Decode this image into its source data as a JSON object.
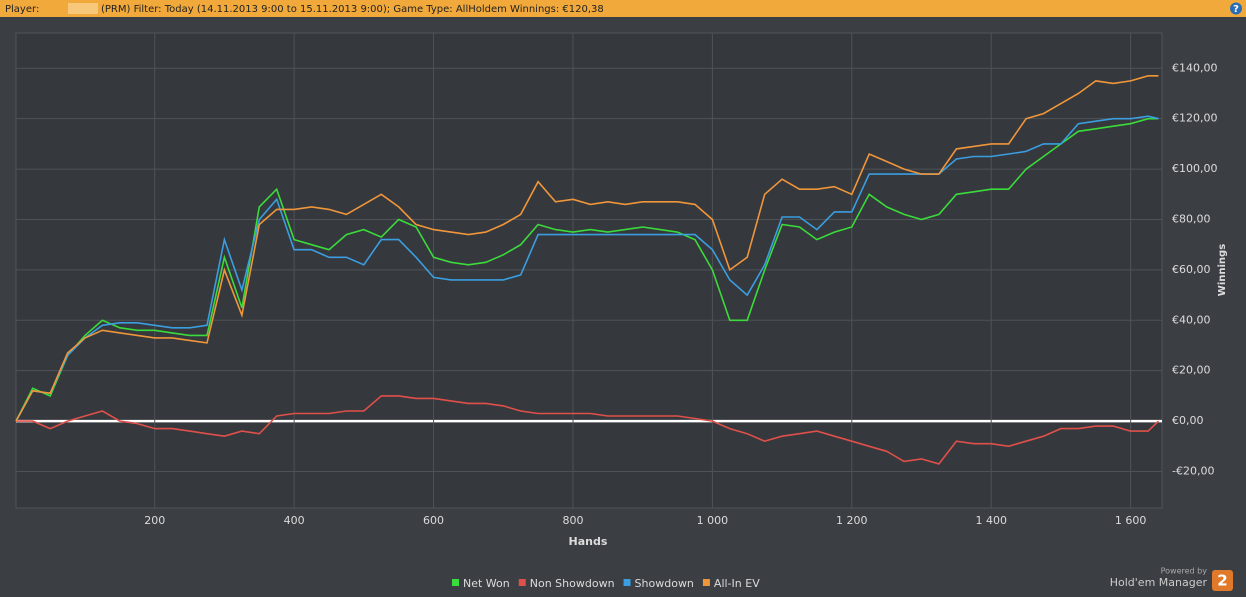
{
  "header": {
    "player_label": "Player:",
    "filter": "(PRM) Filter: Today (14.11.2013 9:00 to 15.11.2013 9:00); Game Type: AllHoldem Winnings: €120,38",
    "help": "?"
  },
  "chart_data": {
    "type": "line",
    "x_label": "Hands",
    "y_label": "Winnings",
    "x": [
      1,
      25,
      50,
      75,
      100,
      125,
      150,
      175,
      200,
      225,
      250,
      275,
      300,
      325,
      350,
      375,
      400,
      425,
      450,
      475,
      500,
      525,
      550,
      575,
      600,
      625,
      650,
      675,
      700,
      725,
      750,
      775,
      800,
      825,
      850,
      875,
      900,
      925,
      950,
      975,
      1000,
      1025,
      1050,
      1075,
      1100,
      1125,
      1150,
      1175,
      1200,
      1225,
      1250,
      1275,
      1300,
      1325,
      1350,
      1375,
      1400,
      1425,
      1450,
      1475,
      1500,
      1525,
      1550,
      1575,
      1600,
      1625,
      1640
    ],
    "series": [
      {
        "name": "Net Won",
        "color": "#3adb3a",
        "values": [
          0,
          13,
          10,
          26,
          34,
          40,
          37,
          36,
          36,
          35,
          34,
          34,
          65,
          45,
          85,
          92,
          72,
          70,
          68,
          74,
          76,
          73,
          80,
          77,
          65,
          63,
          62,
          63,
          66,
          70,
          78,
          76,
          75,
          76,
          75,
          76,
          77,
          76,
          75,
          72,
          60,
          40,
          40,
          60,
          78,
          77,
          72,
          75,
          77,
          90,
          85,
          82,
          80,
          82,
          90,
          91,
          92,
          92,
          100,
          105,
          110,
          115,
          116,
          117,
          118,
          120,
          120
        ]
      },
      {
        "name": "Non Showdown",
        "color": "#e0504a",
        "values": [
          0,
          0,
          -3,
          0,
          2,
          4,
          0,
          -1,
          -3,
          -3,
          -4,
          -5,
          -6,
          -4,
          -5,
          2,
          3,
          3,
          3,
          4,
          4,
          10,
          10,
          9,
          9,
          8,
          7,
          7,
          6,
          4,
          3,
          3,
          3,
          3,
          2,
          2,
          2,
          2,
          2,
          1,
          0,
          -3,
          -5,
          -8,
          -6,
          -5,
          -4,
          -6,
          -8,
          -10,
          -12,
          -16,
          -15,
          -17,
          -8,
          -9,
          -9,
          -10,
          -8,
          -6,
          -3,
          -3,
          -2,
          -2,
          -4,
          -4,
          0
        ]
      },
      {
        "name": "Showdown",
        "color": "#3a9ee0",
        "values": [
          0,
          12,
          11,
          26,
          33,
          38,
          39,
          39,
          38,
          37,
          37,
          38,
          72,
          52,
          80,
          88,
          68,
          68,
          65,
          65,
          62,
          72,
          72,
          65,
          57,
          56,
          56,
          56,
          56,
          58,
          74,
          74,
          74,
          74,
          74,
          74,
          74,
          74,
          74,
          74,
          68,
          56,
          50,
          62,
          81,
          81,
          76,
          83,
          83,
          98,
          98,
          98,
          98,
          98,
          104,
          105,
          105,
          106,
          107,
          110,
          110,
          118,
          119,
          120,
          120,
          121,
          120
        ]
      },
      {
        "name": "All-In EV",
        "color": "#f0963a",
        "values": [
          0,
          12,
          11,
          27,
          33,
          36,
          35,
          34,
          33,
          33,
          32,
          31,
          60,
          42,
          78,
          84,
          84,
          85,
          84,
          82,
          86,
          90,
          85,
          78,
          76,
          75,
          74,
          75,
          78,
          82,
          95,
          87,
          88,
          86,
          87,
          86,
          87,
          87,
          87,
          86,
          80,
          60,
          65,
          90,
          96,
          92,
          92,
          93,
          90,
          106,
          103,
          100,
          98,
          98,
          108,
          109,
          110,
          110,
          120,
          122,
          126,
          130,
          135,
          134,
          135,
          137,
          137
        ]
      }
    ],
    "xlim": [
      1,
      1645
    ],
    "ylim": [
      -34.5,
      154
    ],
    "xticks": [
      200,
      400,
      600,
      800,
      {
        "value": 1000,
        "label": "1 000"
      },
      {
        "value": 1200,
        "label": "1 200"
      },
      {
        "value": 1400,
        "label": "1 400"
      },
      {
        "value": 1600,
        "label": "1 600"
      }
    ],
    "yticks": [
      {
        "value": -20,
        "label": "-€20,00"
      },
      {
        "value": 0,
        "label": "€0,00"
      },
      {
        "value": 20,
        "label": "€20,00"
      },
      {
        "value": 40,
        "label": "€40,00"
      },
      {
        "value": 60,
        "label": "€60,00"
      },
      {
        "value": 80,
        "label": "€80,00"
      },
      {
        "value": 100,
        "label": "€100,00"
      },
      {
        "value": 120,
        "label": "€120,00"
      },
      {
        "value": 140,
        "label": "€140,00"
      }
    ],
    "grid": true
  },
  "footer": {
    "powered_by": "Powered by",
    "brand": "Hold'em Manager",
    "logo": "2"
  }
}
